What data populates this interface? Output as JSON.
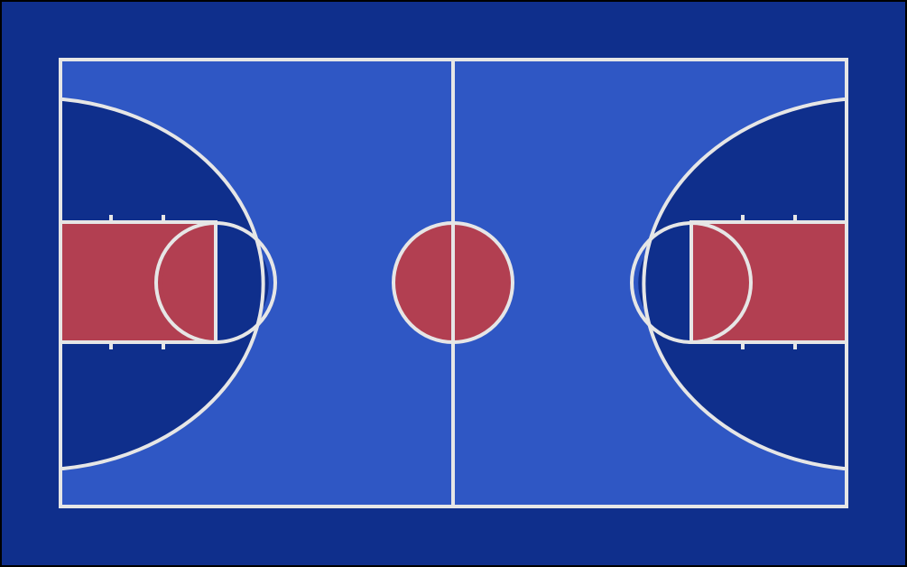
{
  "court": {
    "colors": {
      "outer_border": "#000000",
      "surround": "#0f2f8c",
      "court_floor": "#2f57c4",
      "three_point_area": "#0f2f8c",
      "key_paint": "#b23f51",
      "center_circle": "#b23f51",
      "line": "#e6e6e6"
    }
  }
}
